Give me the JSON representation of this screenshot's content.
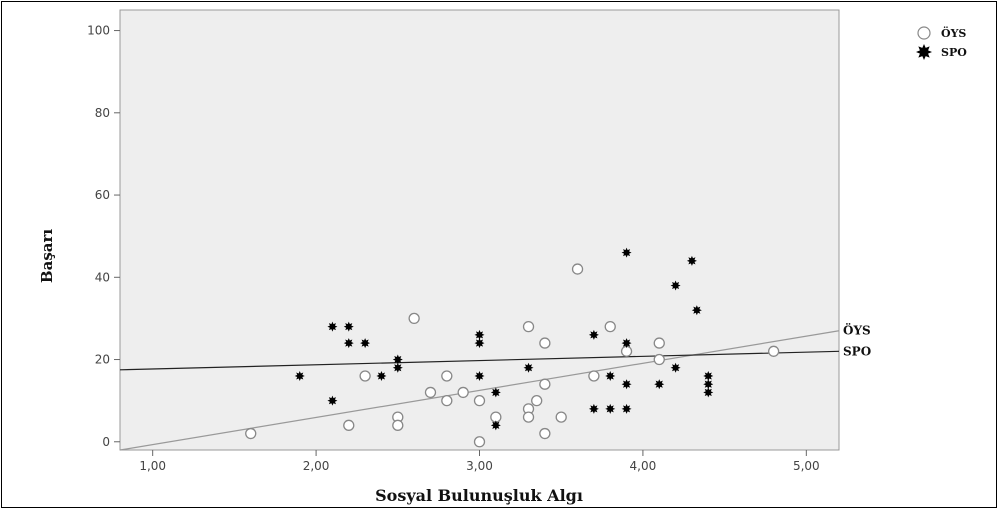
{
  "chart_data": {
    "type": "scatter",
    "title": "",
    "xlabel": "Sosyal Bulunuşluk Algı",
    "ylabel": "Başarı",
    "xlim": [
      0.8,
      5.2
    ],
    "ylim": [
      -2,
      105
    ],
    "x_ticks": [
      "1,00",
      "2,00",
      "3,00",
      "4,00",
      "5,00"
    ],
    "x_tick_values": [
      1,
      2,
      3,
      4,
      5
    ],
    "y_ticks": [
      "0",
      "20",
      "40",
      "60",
      "80",
      "100"
    ],
    "y_tick_values": [
      0,
      20,
      40,
      60,
      80,
      100
    ],
    "grid": false,
    "legend_position": "top-right",
    "background_color": "#eeeeee",
    "series": [
      {
        "name": "ÖYS",
        "marker": "open-circle",
        "color": "#888888",
        "points": [
          [
            1.6,
            2
          ],
          [
            2.2,
            4
          ],
          [
            2.3,
            16
          ],
          [
            2.5,
            6
          ],
          [
            2.5,
            4
          ],
          [
            2.6,
            30
          ],
          [
            2.7,
            12
          ],
          [
            2.8,
            10
          ],
          [
            2.8,
            16
          ],
          [
            2.9,
            12
          ],
          [
            3.0,
            10
          ],
          [
            3.0,
            0
          ],
          [
            3.1,
            6
          ],
          [
            3.3,
            28
          ],
          [
            3.3,
            8
          ],
          [
            3.3,
            6
          ],
          [
            3.35,
            10
          ],
          [
            3.4,
            24
          ],
          [
            3.4,
            14
          ],
          [
            3.4,
            2
          ],
          [
            3.5,
            6
          ],
          [
            3.6,
            42
          ],
          [
            3.7,
            16
          ],
          [
            3.8,
            28
          ],
          [
            3.9,
            22
          ],
          [
            4.1,
            24
          ],
          [
            4.1,
            20
          ],
          [
            4.8,
            22
          ]
        ],
        "fit_line": {
          "label": "ÖYS",
          "x": [
            0.8,
            5.2
          ],
          "y": [
            -2.0,
            27.0
          ]
        }
      },
      {
        "name": "SPO",
        "marker": "filled-star",
        "color": "#000000",
        "points": [
          [
            1.9,
            16
          ],
          [
            2.1,
            28
          ],
          [
            2.1,
            10
          ],
          [
            2.2,
            28
          ],
          [
            2.2,
            24
          ],
          [
            2.3,
            24
          ],
          [
            2.4,
            16
          ],
          [
            2.5,
            20
          ],
          [
            2.5,
            18
          ],
          [
            3.0,
            26
          ],
          [
            3.0,
            24
          ],
          [
            3.0,
            16
          ],
          [
            3.1,
            12
          ],
          [
            3.1,
            4
          ],
          [
            3.3,
            18
          ],
          [
            3.7,
            26
          ],
          [
            3.7,
            8
          ],
          [
            3.8,
            16
          ],
          [
            3.8,
            8
          ],
          [
            3.9,
            46
          ],
          [
            3.9,
            24
          ],
          [
            3.9,
            14
          ],
          [
            3.9,
            8
          ],
          [
            4.1,
            14
          ],
          [
            4.2,
            38
          ],
          [
            4.2,
            18
          ],
          [
            4.3,
            44
          ],
          [
            4.33,
            32
          ],
          [
            4.4,
            16
          ],
          [
            4.4,
            14
          ],
          [
            4.4,
            12
          ]
        ],
        "fit_line": {
          "label": "SPO",
          "x": [
            0.8,
            5.2
          ],
          "y": [
            17.5,
            22.0
          ]
        }
      }
    ]
  }
}
